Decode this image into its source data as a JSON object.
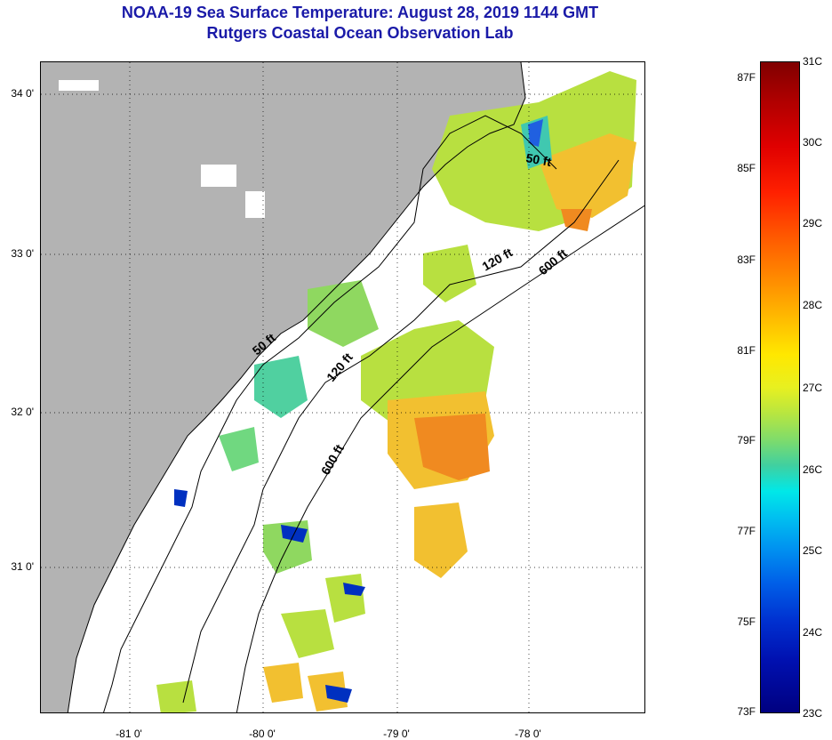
{
  "title": {
    "line1": "NOAA-19 Sea Surface Temperature:  August 28, 2019 1144 GMT",
    "line2": "Rutgers Coastal Ocean Observation Lab"
  },
  "map": {
    "lat_ticks": [
      "34 0'",
      "33 0'",
      "32 0'",
      "31 0'"
    ],
    "lon_ticks": [
      "-81 0'",
      "-80 0'",
      "-79 0'",
      "-78 0'"
    ],
    "depth_contours": [
      "50 ft",
      "120 ft",
      "600 ft",
      "50 ft",
      "120 ft",
      "600 ft"
    ],
    "colors": {
      "land": "#b3b3b3",
      "cloud": "#ffffff",
      "coastline": "#000000"
    }
  },
  "colorbar": {
    "celsius": [
      "31C",
      "30C",
      "29C",
      "28C",
      "27C",
      "26C",
      "25C",
      "24C",
      "23C"
    ],
    "fahrenheit": [
      "87F",
      "85F",
      "83F",
      "81F",
      "79F",
      "77F",
      "75F",
      "73F"
    ]
  }
}
